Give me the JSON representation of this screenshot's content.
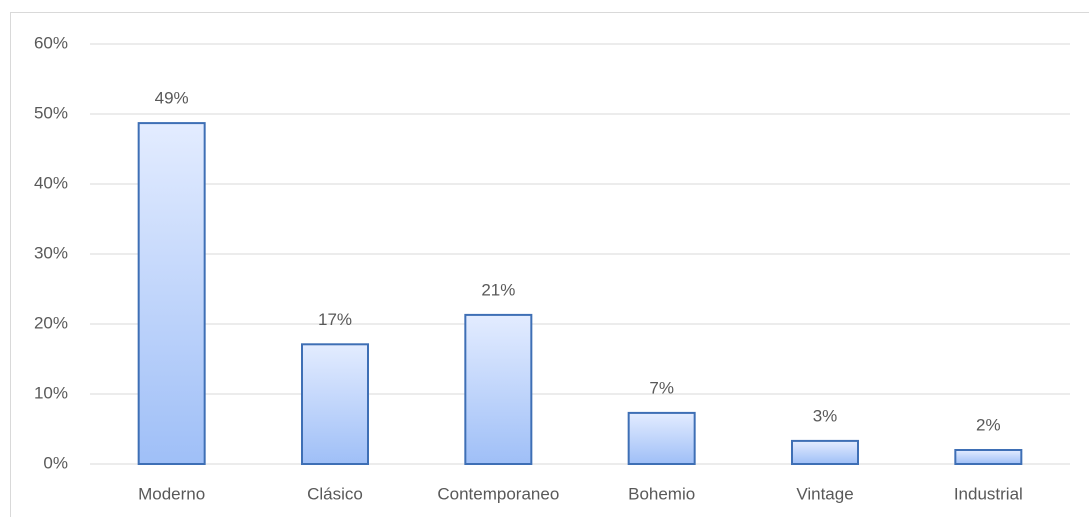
{
  "chart_data": {
    "type": "bar",
    "categories": [
      "Moderno",
      "Clásico",
      "Contemporaneo",
      "Bohemio",
      "Vintage",
      "Industrial"
    ],
    "values": [
      48.7,
      17.1,
      21.3,
      7.3,
      3.3,
      2.0
    ],
    "value_labels": [
      "49%",
      "17%",
      "21%",
      "7%",
      "3%",
      "2%"
    ],
    "color": "#9fbff7",
    "edge_color": "#3e6fb5",
    "ylim": [
      0,
      60
    ],
    "yticks": [
      {
        "value": 0,
        "label": "0%"
      },
      {
        "value": 10,
        "label": "10%"
      },
      {
        "value": 20,
        "label": "20%"
      },
      {
        "value": 30,
        "label": "30%"
      },
      {
        "value": 40,
        "label": "40%"
      },
      {
        "value": 50,
        "label": "50%"
      },
      {
        "value": 60,
        "label": "60%"
      }
    ],
    "grid": true
  }
}
